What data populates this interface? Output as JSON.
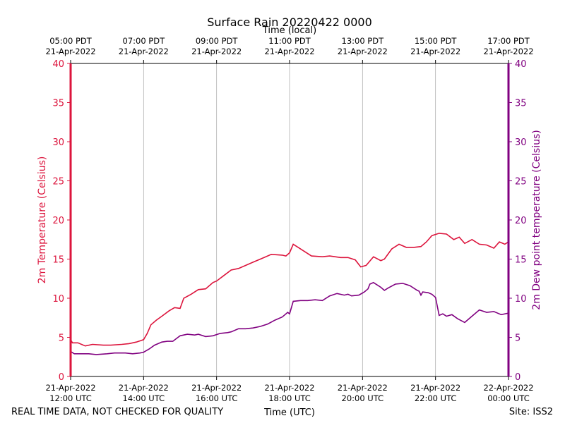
{
  "chart_data": {
    "type": "line",
    "title": "Surface Rain 20220422 0000",
    "xlabel_bottom": "Time (UTC)",
    "xlabel_top": "Time (local)",
    "ylabel_left": "2m Temperature (Celsius)",
    "ylabel_right": "2m Dew point temperature (Celsius)",
    "ylim": [
      0,
      40
    ],
    "yticks": [
      "0",
      "5",
      "10",
      "15",
      "20",
      "25",
      "30",
      "35",
      "40"
    ],
    "xlim_hours_utc": [
      12,
      24
    ],
    "bottom_ticks": [
      {
        "h": 12,
        "line1": "21-Apr-2022",
        "line2": "12:00 UTC"
      },
      {
        "h": 14,
        "line1": "21-Apr-2022",
        "line2": "14:00 UTC"
      },
      {
        "h": 16,
        "line1": "21-Apr-2022",
        "line2": "16:00 UTC"
      },
      {
        "h": 18,
        "line1": "21-Apr-2022",
        "line2": "18:00 UTC"
      },
      {
        "h": 20,
        "line1": "21-Apr-2022",
        "line2": "20:00 UTC"
      },
      {
        "h": 22,
        "line1": "21-Apr-2022",
        "line2": "22:00 UTC"
      },
      {
        "h": 24,
        "line1": "22-Apr-2022",
        "line2": "00:00 UTC"
      }
    ],
    "top_ticks": [
      {
        "h": 12,
        "line1": "05:00 PDT",
        "line2": "21-Apr-2022"
      },
      {
        "h": 14,
        "line1": "07:00 PDT",
        "line2": "21-Apr-2022"
      },
      {
        "h": 16,
        "line1": "09:00 PDT",
        "line2": "21-Apr-2022"
      },
      {
        "h": 18,
        "line1": "11:00 PDT",
        "line2": "21-Apr-2022"
      },
      {
        "h": 20,
        "line1": "13:00 PDT",
        "line2": "21-Apr-2022"
      },
      {
        "h": 22,
        "line1": "15:00 PDT",
        "line2": "21-Apr-2022"
      },
      {
        "h": 24,
        "line1": "17:00 PDT",
        "line2": "21-Apr-2022"
      }
    ],
    "grid": "vertical",
    "colors": {
      "temperature": "#dc143c",
      "dewpoint": "#800080"
    },
    "series": [
      {
        "key": "temperature",
        "x": [
          12.0,
          12.05,
          12.2,
          12.4,
          12.6,
          12.9,
          13.1,
          13.4,
          13.6,
          13.8,
          14.0,
          14.1,
          14.2,
          14.35,
          14.5,
          14.7,
          14.85,
          15.0,
          15.1,
          15.3,
          15.5,
          15.7,
          15.9,
          16.0,
          16.2,
          16.4,
          16.6,
          16.8,
          17.0,
          17.2,
          17.5,
          17.8,
          17.9,
          18.0,
          18.1,
          18.3,
          18.6,
          18.9,
          19.1,
          19.4,
          19.6,
          19.8,
          19.95,
          20.1,
          20.3,
          20.5,
          20.6,
          20.8,
          21.0,
          21.2,
          21.4,
          21.6,
          21.75,
          21.9,
          22.1,
          22.3,
          22.5,
          22.65,
          22.8,
          23.0,
          23.2,
          23.4,
          23.6,
          23.75,
          23.9,
          24.0
        ],
        "values": [
          4.7,
          4.3,
          4.3,
          3.9,
          4.1,
          4.0,
          4.0,
          4.1,
          4.2,
          4.4,
          4.7,
          5.5,
          6.6,
          7.2,
          7.7,
          8.4,
          8.8,
          8.7,
          10.0,
          10.5,
          11.1,
          11.2,
          12.0,
          12.2,
          12.9,
          13.6,
          13.8,
          14.2,
          14.6,
          15.0,
          15.6,
          15.5,
          15.4,
          15.8,
          16.9,
          16.3,
          15.4,
          15.3,
          15.4,
          15.2,
          15.2,
          14.9,
          14.0,
          14.2,
          15.3,
          14.8,
          15.0,
          16.3,
          16.9,
          16.5,
          16.5,
          16.6,
          17.2,
          18.0,
          18.3,
          18.2,
          17.5,
          17.8,
          17.0,
          17.5,
          16.9,
          16.8,
          16.4,
          17.2,
          16.9,
          17.2
        ]
      },
      {
        "key": "dewpoint",
        "x": [
          12.0,
          12.1,
          12.3,
          12.5,
          12.7,
          13.0,
          13.2,
          13.5,
          13.7,
          13.9,
          14.0,
          14.15,
          14.3,
          14.5,
          14.65,
          14.8,
          15.0,
          15.2,
          15.4,
          15.5,
          15.7,
          15.9,
          16.1,
          16.3,
          16.4,
          16.6,
          16.8,
          17.0,
          17.2,
          17.4,
          17.6,
          17.8,
          17.95,
          18.0,
          18.1,
          18.3,
          18.5,
          18.7,
          18.9,
          19.1,
          19.3,
          19.5,
          19.6,
          19.7,
          19.9,
          20.05,
          20.15,
          20.2,
          20.3,
          20.5,
          20.6,
          20.7,
          20.9,
          21.1,
          21.3,
          21.5,
          21.55,
          21.6,
          21.65,
          21.8,
          21.9,
          22.0,
          22.1,
          22.2,
          22.3,
          22.45,
          22.6,
          22.8,
          23.0,
          23.2,
          23.4,
          23.6,
          23.8,
          24.0
        ],
        "values": [
          3.2,
          2.9,
          2.9,
          2.9,
          2.8,
          2.9,
          3.0,
          3.0,
          2.9,
          3.0,
          3.1,
          3.5,
          4.0,
          4.4,
          4.5,
          4.5,
          5.2,
          5.4,
          5.3,
          5.4,
          5.1,
          5.2,
          5.5,
          5.6,
          5.7,
          6.1,
          6.1,
          6.2,
          6.4,
          6.7,
          7.2,
          7.6,
          8.2,
          8.0,
          9.6,
          9.7,
          9.7,
          9.8,
          9.7,
          10.3,
          10.6,
          10.4,
          10.5,
          10.3,
          10.4,
          10.8,
          11.2,
          11.8,
          12.0,
          11.4,
          11.0,
          11.3,
          11.8,
          11.9,
          11.6,
          11.0,
          10.9,
          10.4,
          10.8,
          10.7,
          10.5,
          10.1,
          7.8,
          8.0,
          7.7,
          7.9,
          7.4,
          6.9,
          7.7,
          8.5,
          8.2,
          8.3,
          7.9,
          8.1
        ]
      }
    ]
  },
  "footer": {
    "disclaimer": "REAL TIME DATA, NOT CHECKED FOR QUALITY",
    "site": "Site: ISS2"
  }
}
